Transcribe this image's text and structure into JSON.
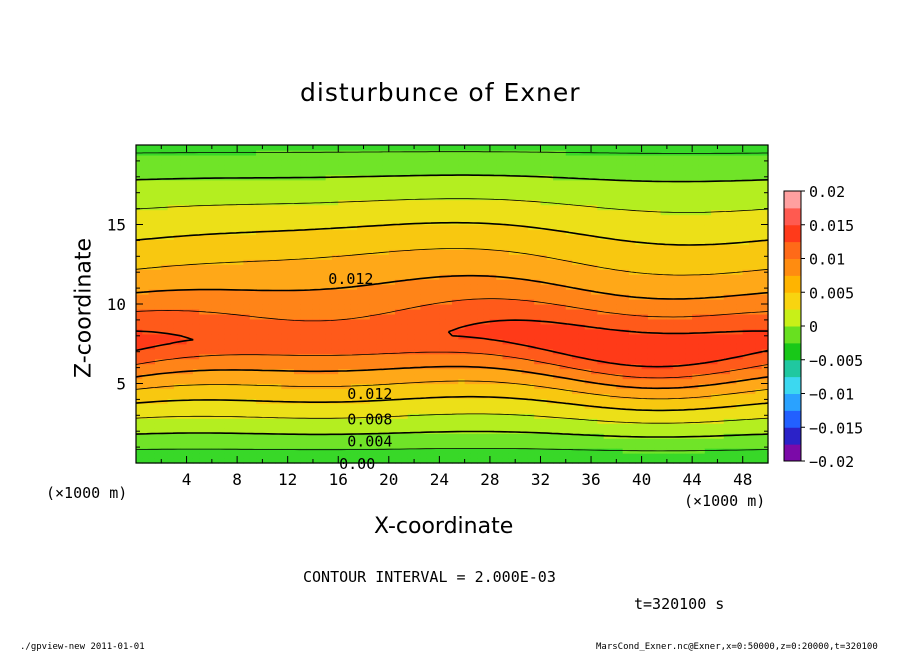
{
  "chart_data": {
    "type": "heatmap",
    "title": "disturbunce of Exner",
    "xlabel": "X-coordinate",
    "ylabel": "Z-coordinate",
    "x_unit": "(×1000 m)",
    "z_unit": "(×1000 m)",
    "xlim": [
      0,
      50
    ],
    "ylim": [
      0,
      20
    ],
    "x_ticks": [
      "4",
      "8",
      "12",
      "16",
      "20",
      "24",
      "28",
      "32",
      "36",
      "40",
      "44",
      "48"
    ],
    "y_ticks": [
      "5",
      "10",
      "15"
    ],
    "contour_labels": [
      "0.012",
      "0.012",
      "0.008",
      "0.004",
      "0.00"
    ],
    "colorbar": {
      "ticks": [
        "0.02",
        "0.015",
        "0.01",
        "0.005",
        "0",
        "−0.005",
        "−0.01",
        "−0.015",
        "−0.02"
      ],
      "range": [
        -0.02,
        0.02
      ],
      "colors": [
        "#7b0aa8",
        "#2b22c8",
        "#2260ff",
        "#2aa2ff",
        "#3cd8f0",
        "#20c8a0",
        "#18c818",
        "#68e020",
        "#c8f018",
        "#f8d410",
        "#ffb400",
        "#ff8c10",
        "#ff6a18",
        "#ff3a1a",
        "#ff5a50",
        "#ffa0a0"
      ]
    },
    "levels": [
      {
        "min": 0.0,
        "max": 0.002,
        "color": "#38d828"
      },
      {
        "min": 0.002,
        "max": 0.004,
        "color": "#70e428"
      },
      {
        "min": 0.004,
        "max": 0.006,
        "color": "#b4ee20"
      },
      {
        "min": 0.006,
        "max": 0.008,
        "color": "#ece018"
      },
      {
        "min": 0.008,
        "max": 0.01,
        "color": "#f8c810"
      },
      {
        "min": 0.01,
        "max": 0.012,
        "color": "#ffa818"
      },
      {
        "min": 0.012,
        "max": 0.014,
        "color": "#ff8418"
      },
      {
        "min": 0.014,
        "max": 0.016,
        "color": "#ff5a1a"
      },
      {
        "min": 0.016,
        "max": 0.018,
        "color": "#ff3a18"
      }
    ],
    "contour_interval": 0.002
  },
  "footer": {
    "contour_interval_text": "CONTOUR INTERVAL = 2.000E-03",
    "time_text": "t=320100 s",
    "left_note": "./gpview-new   2011-01-01",
    "right_note": "MarsCond_Exner.nc@Exner,x=0:50000,z=0:20000,t=320100"
  }
}
